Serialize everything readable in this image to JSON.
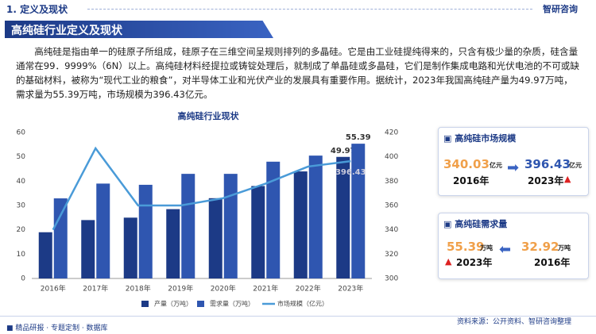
{
  "header": {
    "section": "1. 定义及现状",
    "logo": "智研咨询"
  },
  "title": "高纯硅行业定义及现状",
  "paragraph": "高纯硅是指由单一的硅原子所组成，硅原子在三维空间呈规则排列的多晶硅。它是由工业硅提纯得来的，只含有极少量的杂质，硅含量通常在99．9999%（6N）以上。高纯硅材料经提拉或铸锭处理后，就制成了单晶硅或多晶硅，它们是制作集成电路和光伏电池的不可或缺的基础材料，被称为“现代工业的粮食”，对半导体工业和光伏产业的发展具有重要作用。据统计，2023年我国高纯硅产量为49.97万吨，需求量为55.39万吨，市场规模为396.43亿元。",
  "chart_data": {
    "type": "bar",
    "title": "高纯硅行业现状",
    "categories": [
      "2016年",
      "2017年",
      "2018年",
      "2019年",
      "2020年",
      "2021年",
      "2022年",
      "2023年"
    ],
    "series": [
      {
        "name": "产量（万吨）",
        "color": "#1c3a86",
        "values": [
          19,
          24,
          25,
          28.5,
          33,
          38,
          44,
          49.97
        ]
      },
      {
        "name": "需求量（万吨）",
        "color": "#2f56b0",
        "values": [
          32.92,
          39,
          38.5,
          43,
          43,
          48,
          50.5,
          55.39
        ]
      },
      {
        "name": "市场规模（亿元）",
        "type": "line",
        "axis": "y2",
        "color": "#4a9bd8",
        "values": [
          340.03,
          407,
          360,
          360,
          366,
          378,
          392,
          396.43
        ]
      }
    ],
    "ylim": [
      0,
      60
    ],
    "yticks": [
      0,
      10,
      20,
      30,
      40,
      50,
      60
    ],
    "y2lim": [
      300,
      420
    ],
    "y2ticks": [
      300,
      320,
      340,
      360,
      380,
      400,
      420
    ],
    "grid": false,
    "legend": "bottom"
  },
  "panels": [
    {
      "title": "高纯硅市场规模",
      "unit": "亿元"
    },
    {
      "title": "高纯硅需求量",
      "unit": "万吨"
    }
  ],
  "footer": {
    "left": "精品研报 · 专题定制 · 数据库",
    "source": "资料来源：公开资料、智研咨询整理"
  }
}
